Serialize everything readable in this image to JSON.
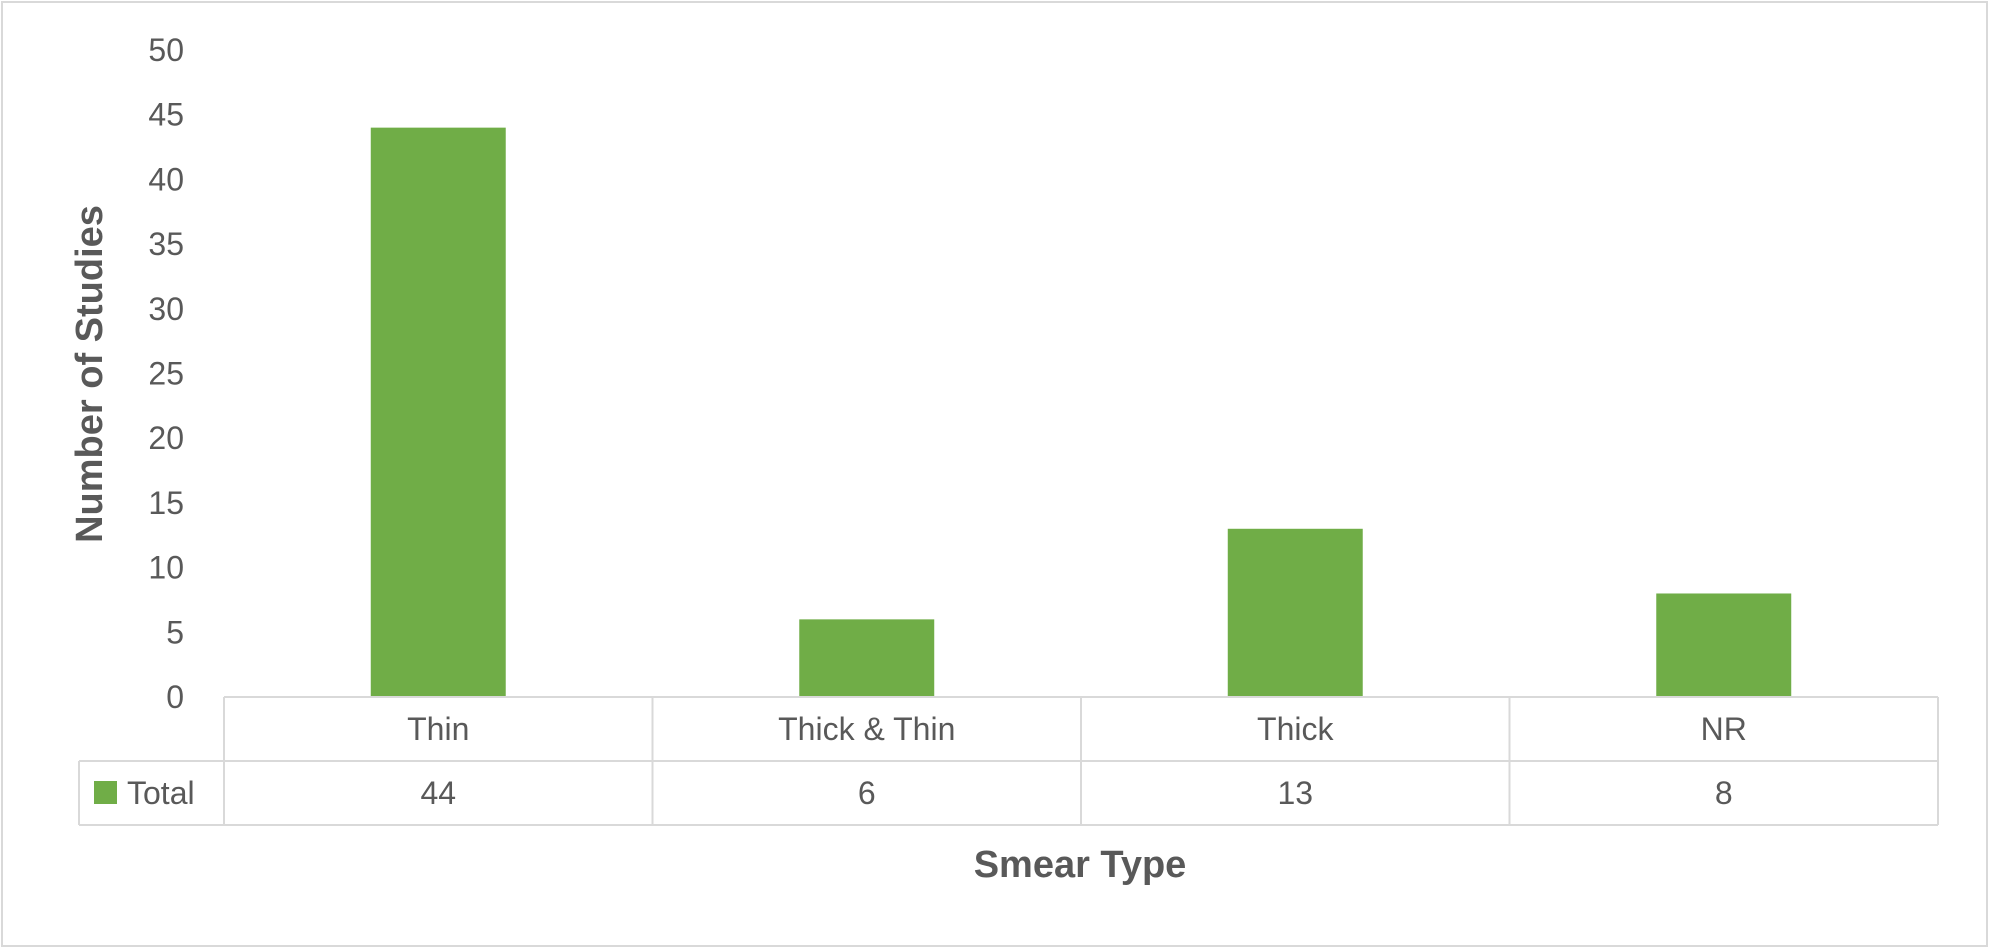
{
  "chart_data": {
    "type": "bar",
    "categories": [
      "Thin",
      "Thick & Thin",
      "Thick",
      "NR"
    ],
    "series": [
      {
        "name": "Total",
        "values": [
          44,
          6,
          13,
          8
        ],
        "color": "#70ad47"
      }
    ],
    "xlabel": "Smear Type",
    "ylabel": "Number of Studies",
    "ylim": [
      0,
      50
    ],
    "yticks": [
      0,
      5,
      10,
      15,
      20,
      25,
      30,
      35,
      40,
      45,
      50
    ],
    "grid": false,
    "legend": "data-table",
    "data_table": true
  }
}
